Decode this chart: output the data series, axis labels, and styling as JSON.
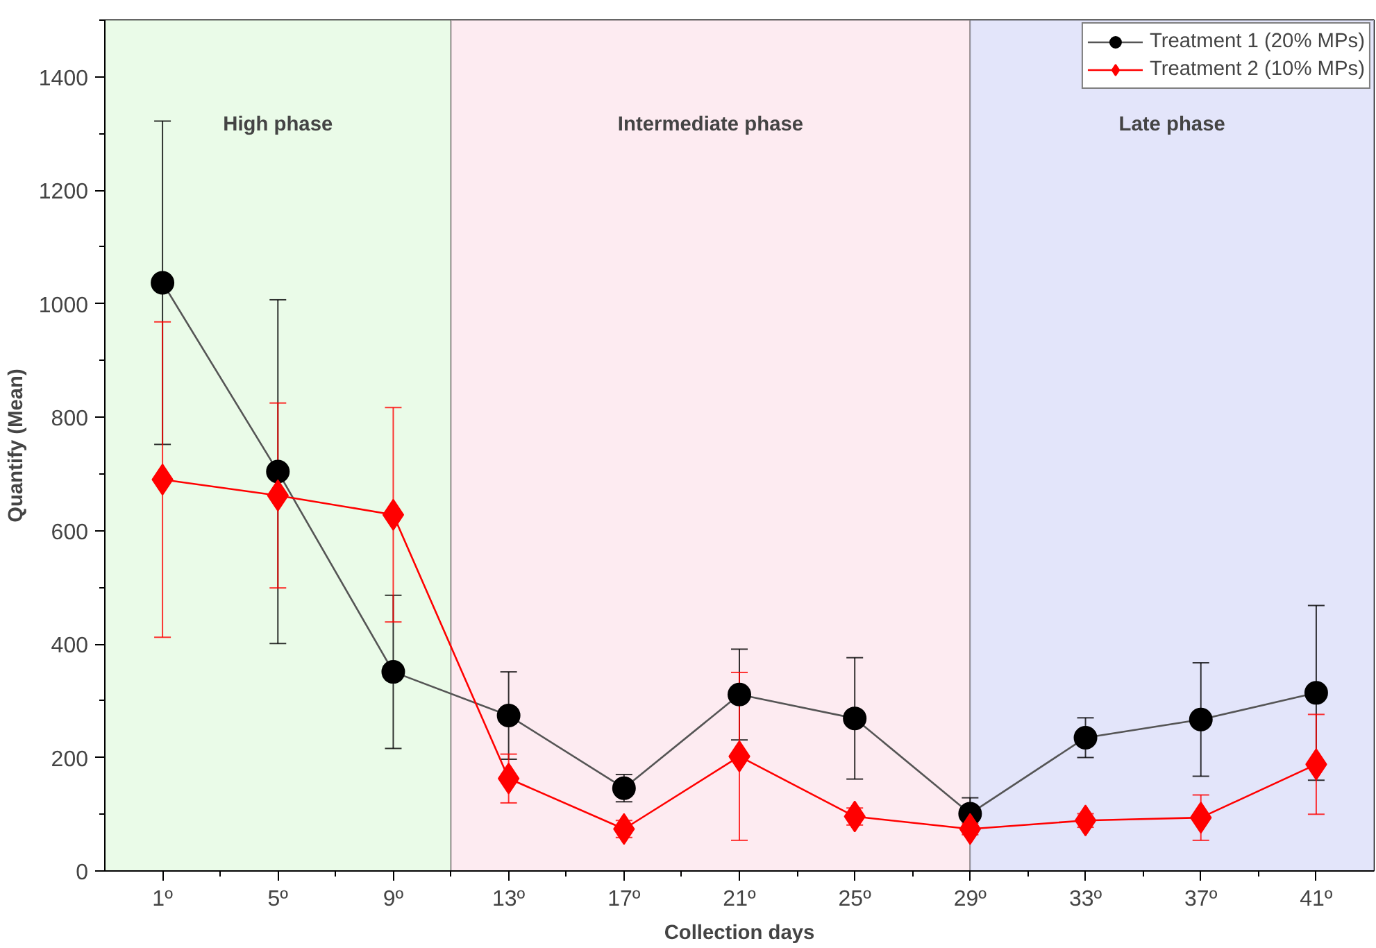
{
  "chart_data": {
    "type": "line",
    "xlabel": "Collection days",
    "ylabel": "Quantify (Mean)",
    "x": [
      1,
      5,
      9,
      13,
      17,
      21,
      25,
      29,
      33,
      37,
      41
    ],
    "series": [
      {
        "name": "Treatment 1 (20% MPs)",
        "color": "#000000",
        "marker": "circle",
        "values": [
          1037,
          704,
          351,
          274,
          146,
          311,
          269,
          101,
          235,
          267,
          314
        ],
        "errors": [
          285,
          303,
          135,
          77,
          24,
          80,
          107,
          28,
          35,
          100,
          154
        ]
      },
      {
        "name": "Treatment 2 (10% MPs)",
        "color": "#ff0000",
        "marker": "diamond",
        "values": [
          690,
          662,
          628,
          163,
          74,
          202,
          96,
          74,
          89,
          94,
          188
        ],
        "errors": [
          278,
          163,
          189,
          43,
          15,
          148,
          15,
          10,
          12,
          40,
          88
        ]
      }
    ],
    "xlim": [
      -1,
      43
    ],
    "ylim": [
      0,
      1500
    ],
    "xticks": [
      {
        "value": 1,
        "label": "1º"
      },
      {
        "value": 5,
        "label": "5º"
      },
      {
        "value": 9,
        "label": "9º"
      },
      {
        "value": 13,
        "label": "13º"
      },
      {
        "value": 17,
        "label": "17º"
      },
      {
        "value": 21,
        "label": "21º"
      },
      {
        "value": 25,
        "label": "25º"
      },
      {
        "value": 29,
        "label": "29º"
      },
      {
        "value": 33,
        "label": "33º"
      },
      {
        "value": 37,
        "label": "37º"
      },
      {
        "value": 41,
        "label": "41º"
      }
    ],
    "yticks": [
      0,
      200,
      400,
      600,
      800,
      1000,
      1200,
      1400
    ],
    "bands": [
      {
        "axis": "x",
        "from": -1,
        "to": 11,
        "label": "High phase",
        "color": "#eafbe8"
      },
      {
        "axis": "x",
        "from": 11,
        "to": 29,
        "label": "Intermediate phase",
        "color": "#fdebf1"
      },
      {
        "axis": "x",
        "from": 29,
        "to": 43,
        "label": "Late phase",
        "color": "#e3e5fa"
      }
    ],
    "grid": false,
    "legend": "top right",
    "line_style": "solid"
  }
}
